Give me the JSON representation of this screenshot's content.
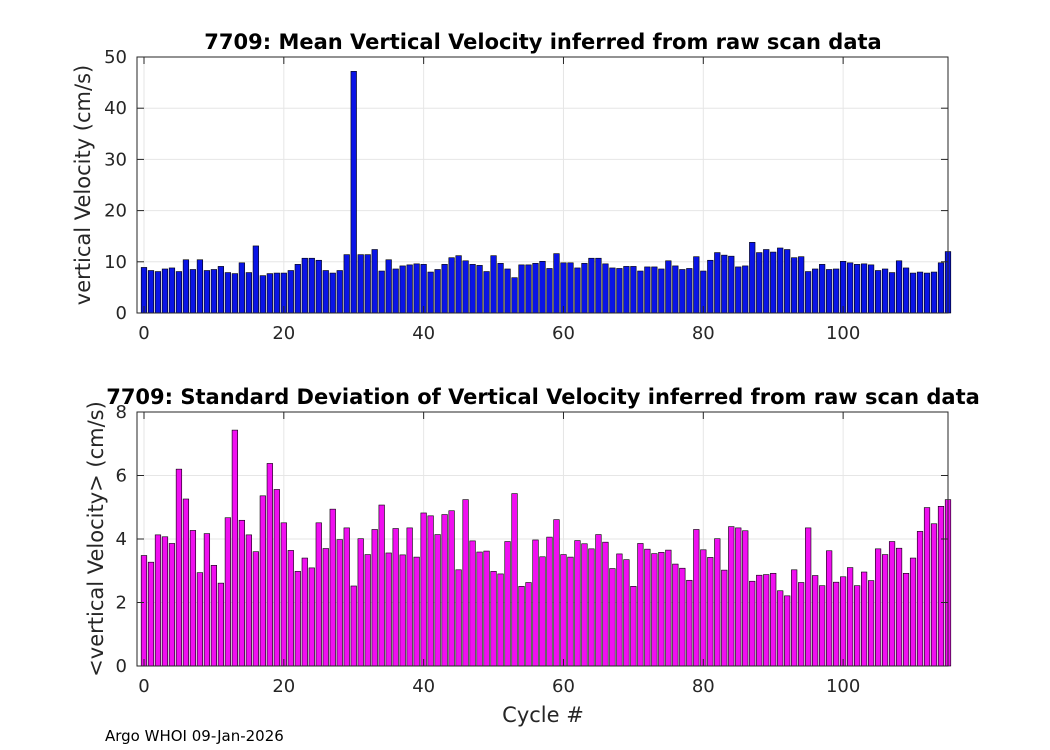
{
  "footer": "Argo WHOI 09-Jan-2026",
  "chart_data": [
    {
      "type": "bar",
      "title": "7709: Mean Vertical Velocity inferred from raw scan data",
      "xlabel": "",
      "ylabel": "vertical Velocity (cm/s)",
      "xlim": [
        -1,
        115
      ],
      "ylim": [
        0,
        50
      ],
      "xticks": [
        "0",
        "20",
        "40",
        "60",
        "80",
        "100"
      ],
      "yticks": [
        "0",
        "10",
        "20",
        "30",
        "40",
        "50"
      ],
      "color": "#0a14e6",
      "grid": true,
      "x_start": 0,
      "values": [
        8.9,
        8.3,
        8.1,
        8.6,
        8.8,
        8.1,
        10.4,
        8.5,
        10.4,
        8.3,
        8.5,
        9.1,
        7.9,
        7.7,
        9.8,
        7.9,
        13.1,
        7.3,
        7.7,
        7.8,
        7.8,
        8.3,
        9.5,
        10.7,
        10.7,
        10.3,
        8.3,
        7.8,
        8.3,
        11.4,
        47.2,
        11.4,
        11.4,
        12.4,
        8.2,
        10.4,
        8.6,
        9.2,
        9.4,
        9.6,
        9.5,
        8.0,
        8.5,
        9.5,
        10.8,
        11.2,
        10.2,
        9.5,
        9.3,
        8.1,
        11.2,
        9.7,
        8.6,
        6.9,
        9.4,
        9.4,
        9.7,
        10.1,
        8.7,
        11.6,
        9.8,
        9.8,
        8.8,
        9.7,
        10.7,
        10.7,
        9.6,
        8.8,
        8.7,
        9.1,
        9.1,
        8.2,
        9.0,
        9.0,
        8.6,
        10.2,
        9.2,
        8.5,
        8.7,
        11.0,
        8.2,
        10.3,
        11.8,
        11.3,
        11.1,
        9.0,
        9.2,
        13.8,
        11.8,
        12.4,
        11.9,
        12.7,
        12.4,
        10.8,
        11.0,
        8.1,
        8.6,
        9.5,
        8.5,
        8.6,
        10.1,
        9.8,
        9.5,
        9.6,
        9.4,
        8.3,
        8.6,
        7.9,
        10.2,
        8.8,
        7.8,
        8.0,
        7.8,
        8.0,
        9.8,
        12.0
      ]
    },
    {
      "type": "bar",
      "title": "7709: Standard Deviation of Vertical Velocity inferred from raw scan data",
      "xlabel": "Cycle #",
      "ylabel": "<vertical Velocity> (cm/s)",
      "xlim": [
        -1,
        115
      ],
      "ylim": [
        0,
        8
      ],
      "xticks": [
        "0",
        "20",
        "40",
        "60",
        "80",
        "100"
      ],
      "yticks": [
        "0",
        "2",
        "4",
        "6",
        "8"
      ],
      "color": "#f00ff0",
      "grid": true,
      "x_start": 0,
      "values": [
        3.48,
        3.27,
        4.13,
        4.07,
        3.86,
        6.2,
        5.26,
        4.27,
        2.94,
        4.17,
        3.17,
        2.61,
        4.67,
        7.43,
        4.59,
        4.13,
        3.6,
        5.36,
        6.38,
        5.56,
        4.51,
        3.64,
        2.98,
        3.4,
        3.09,
        4.51,
        3.7,
        4.94,
        3.98,
        4.35,
        2.52,
        4.01,
        3.51,
        4.3,
        5.07,
        3.56,
        4.33,
        3.5,
        4.35,
        3.43,
        4.82,
        4.73,
        4.14,
        4.77,
        4.89,
        3.03,
        5.24,
        3.94,
        3.59,
        3.62,
        2.98,
        2.9,
        3.92,
        5.43,
        2.51,
        2.63,
        3.97,
        3.44,
        4.06,
        4.61,
        3.51,
        3.43,
        3.95,
        3.85,
        3.69,
        4.14,
        3.9,
        3.07,
        3.53,
        3.35,
        2.51,
        3.86,
        3.68,
        3.54,
        3.58,
        3.65,
        3.21,
        3.08,
        2.7,
        4.3,
        3.66,
        3.42,
        4.01,
        3.02,
        4.39,
        4.35,
        4.26,
        2.67,
        2.86,
        2.88,
        2.92,
        2.37,
        2.21,
        3.03,
        2.63,
        4.35,
        2.85,
        2.53,
        3.63,
        2.64,
        2.81,
        3.1,
        2.53,
        2.96,
        2.69,
        3.69,
        3.51,
        3.92,
        3.71,
        2.92,
        3.4,
        4.24,
        4.99,
        4.48,
        5.03,
        5.24
      ]
    }
  ]
}
